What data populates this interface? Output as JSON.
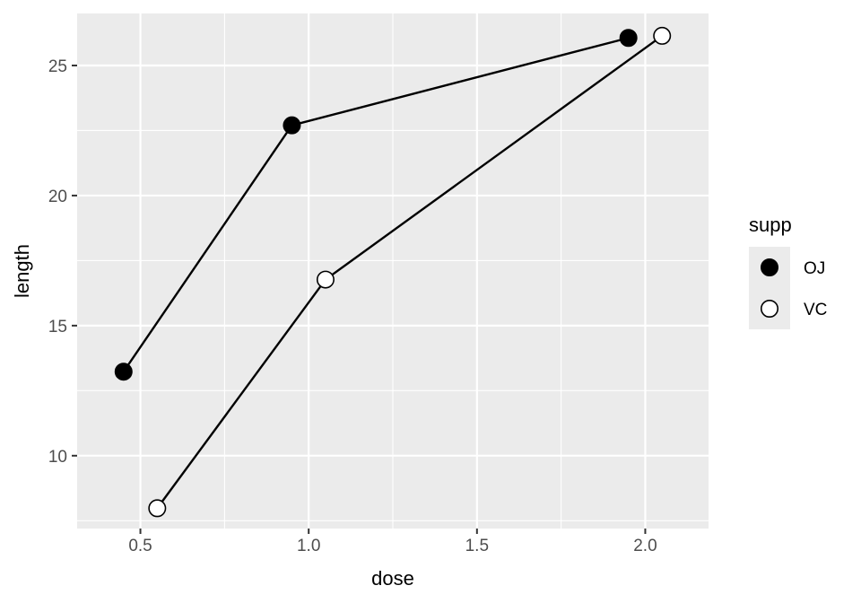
{
  "chart_data": {
    "type": "line",
    "xlabel": "dose",
    "ylabel": "length",
    "xlim": [
      0.312,
      2.188
    ],
    "ylim": [
      7.2,
      27.0
    ],
    "x_ticks": [
      0.5,
      1.0,
      1.5,
      2.0
    ],
    "x_tick_labels": [
      "0.5",
      "1.0",
      "1.5",
      "2.0"
    ],
    "y_ticks": [
      10,
      15,
      20,
      25
    ],
    "y_tick_labels": [
      "10",
      "15",
      "20",
      "25"
    ],
    "grid": true,
    "legend": {
      "title": "supp",
      "placement": "right"
    },
    "series": [
      {
        "name": "OJ",
        "fill": "#000000",
        "x": [
          0.45,
          0.95,
          1.95
        ],
        "y": [
          13.23,
          22.7,
          26.06
        ]
      },
      {
        "name": "VC",
        "fill": "#ffffff",
        "x": [
          0.55,
          1.05,
          2.05
        ],
        "y": [
          7.98,
          16.77,
          26.14
        ]
      }
    ],
    "colors": {
      "panel": "#ebebeb",
      "grid": "#ffffff",
      "line": "#000000"
    }
  }
}
